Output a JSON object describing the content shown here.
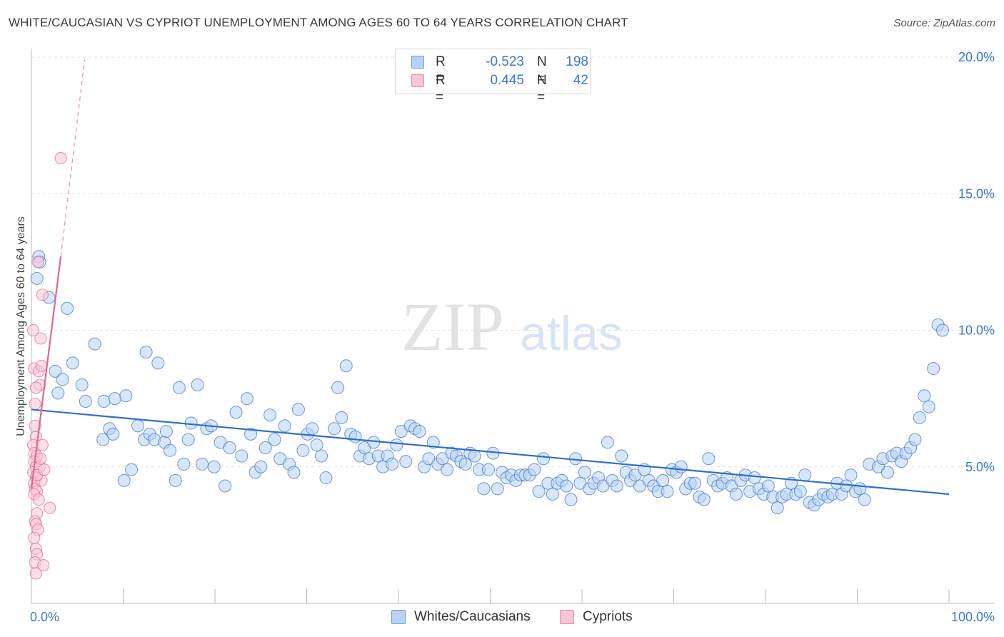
{
  "header": {
    "title": "WHITE/CAUCASIAN VS CYPRIOT UNEMPLOYMENT AMONG AGES 60 TO 64 YEARS CORRELATION CHART",
    "source": "Source: ZipAtlas.com"
  },
  "watermark": {
    "part1": "ZIP",
    "part2": "atlas"
  },
  "legend": {
    "rows": [
      {
        "r_label": "R =",
        "r_value": "-0.523",
        "n_label": "N =",
        "n_value": "198",
        "color": "#6b9fe0",
        "fill": "#b8d2f5"
      },
      {
        "r_label": "R =",
        "r_value": "0.445",
        "n_label": "N =",
        "n_value": "42",
        "color": "#e88aa8",
        "fill": "#f9c6d6"
      }
    ]
  },
  "bottom_legend": [
    {
      "label": "Whites/Caucasians",
      "color": "#6b9fe0",
      "fill": "#b8d2f5"
    },
    {
      "label": "Cypriots",
      "color": "#e88aa8",
      "fill": "#f9c6d6"
    }
  ],
  "chart_data": {
    "type": "scatter",
    "title": "WHITE/CAUCASIAN VS CYPRIOT UNEMPLOYMENT AMONG AGES 60 TO 64 YEARS CORRELATION CHART",
    "xlabel": "",
    "ylabel": "Unemployment Among Ages 60 to 64 years",
    "xlim": [
      0,
      100
    ],
    "ylim": [
      0,
      20
    ],
    "x_tick_labels": [
      "0.0%",
      "100.0%"
    ],
    "y_ticks": [
      5,
      10,
      15,
      20
    ],
    "y_tick_labels": [
      "5.0%",
      "10.0%",
      "15.0%",
      "20.0%"
    ],
    "grid": "horizontal dashed",
    "legend_placement": "top-center",
    "series": [
      {
        "name": "Whites/Caucasians",
        "color": "#3d78c8",
        "fill": "#b8d2f5",
        "trend": {
          "x": [
            0,
            100
          ],
          "y": [
            7.1,
            4.0
          ]
        },
        "points": [
          [
            0.8,
            12.7
          ],
          [
            0.9,
            12.5
          ],
          [
            0.6,
            11.9
          ],
          [
            1.9,
            11.2
          ],
          [
            3.9,
            10.8
          ],
          [
            2.6,
            8.5
          ],
          [
            4.5,
            8.8
          ],
          [
            3.4,
            8.2
          ],
          [
            2.9,
            7.7
          ],
          [
            5.5,
            8.0
          ],
          [
            5.9,
            7.4
          ],
          [
            6.9,
            9.5
          ],
          [
            7.8,
            6.0
          ],
          [
            7.9,
            7.4
          ],
          [
            8.5,
            6.4
          ],
          [
            8.9,
            6.2
          ],
          [
            9.1,
            7.5
          ],
          [
            10.3,
            7.6
          ],
          [
            10.1,
            4.5
          ],
          [
            10.9,
            4.9
          ],
          [
            11.6,
            6.5
          ],
          [
            12.3,
            6.0
          ],
          [
            12.5,
            9.2
          ],
          [
            12.9,
            6.2
          ],
          [
            13.4,
            6.0
          ],
          [
            13.8,
            8.8
          ],
          [
            14.5,
            5.9
          ],
          [
            14.7,
            6.3
          ],
          [
            15.1,
            5.6
          ],
          [
            15.7,
            4.5
          ],
          [
            16.1,
            7.9
          ],
          [
            16.6,
            5.1
          ],
          [
            17.1,
            6.0
          ],
          [
            17.4,
            6.6
          ],
          [
            18.1,
            8.0
          ],
          [
            18.6,
            5.1
          ],
          [
            19.1,
            6.4
          ],
          [
            19.6,
            6.5
          ],
          [
            19.9,
            5.0
          ],
          [
            20.6,
            5.9
          ],
          [
            21.1,
            4.3
          ],
          [
            21.6,
            5.7
          ],
          [
            22.3,
            7.0
          ],
          [
            22.9,
            5.4
          ],
          [
            23.5,
            7.5
          ],
          [
            23.9,
            6.2
          ],
          [
            24.4,
            4.8
          ],
          [
            25.0,
            5.0
          ],
          [
            25.5,
            5.7
          ],
          [
            26.0,
            6.9
          ],
          [
            26.5,
            6.0
          ],
          [
            27.1,
            5.3
          ],
          [
            27.6,
            6.5
          ],
          [
            28.1,
            5.1
          ],
          [
            28.6,
            4.8
          ],
          [
            29.1,
            7.1
          ],
          [
            29.6,
            5.6
          ],
          [
            30.1,
            6.2
          ],
          [
            30.6,
            6.4
          ],
          [
            31.1,
            5.8
          ],
          [
            31.6,
            5.4
          ],
          [
            32.1,
            4.6
          ],
          [
            33.0,
            6.4
          ],
          [
            33.4,
            7.9
          ],
          [
            33.8,
            6.8
          ],
          [
            34.3,
            8.7
          ],
          [
            34.8,
            6.2
          ],
          [
            35.3,
            6.1
          ],
          [
            35.8,
            5.4
          ],
          [
            36.3,
            5.7
          ],
          [
            36.8,
            5.3
          ],
          [
            37.3,
            5.9
          ],
          [
            37.8,
            5.4
          ],
          [
            38.3,
            5.0
          ],
          [
            38.8,
            5.4
          ],
          [
            39.3,
            5.1
          ],
          [
            39.8,
            5.8
          ],
          [
            40.3,
            6.3
          ],
          [
            40.8,
            5.2
          ],
          [
            41.3,
            6.5
          ],
          [
            41.8,
            6.4
          ],
          [
            42.3,
            6.3
          ],
          [
            42.8,
            5.0
          ],
          [
            43.3,
            5.3
          ],
          [
            43.8,
            5.9
          ],
          [
            44.3,
            5.1
          ],
          [
            44.8,
            5.3
          ],
          [
            45.3,
            4.9
          ],
          [
            45.8,
            5.5
          ],
          [
            46.3,
            5.4
          ],
          [
            46.8,
            5.2
          ],
          [
            47.3,
            5.1
          ],
          [
            47.8,
            5.5
          ],
          [
            48.3,
            5.4
          ],
          [
            48.8,
            4.9
          ],
          [
            49.3,
            4.2
          ],
          [
            49.8,
            4.9
          ],
          [
            50.3,
            5.5
          ],
          [
            50.8,
            4.2
          ],
          [
            51.3,
            4.8
          ],
          [
            51.8,
            4.6
          ],
          [
            52.3,
            4.7
          ],
          [
            52.8,
            4.5
          ],
          [
            53.3,
            4.7
          ],
          [
            53.8,
            4.7
          ],
          [
            54.3,
            4.7
          ],
          [
            54.8,
            4.9
          ],
          [
            55.3,
            4.1
          ],
          [
            55.8,
            5.3
          ],
          [
            56.3,
            4.4
          ],
          [
            56.8,
            4.0
          ],
          [
            57.3,
            4.4
          ],
          [
            57.8,
            4.5
          ],
          [
            58.3,
            4.3
          ],
          [
            58.8,
            3.8
          ],
          [
            59.3,
            5.3
          ],
          [
            59.8,
            4.4
          ],
          [
            60.3,
            4.8
          ],
          [
            60.8,
            4.2
          ],
          [
            61.3,
            4.4
          ],
          [
            61.8,
            4.6
          ],
          [
            62.3,
            4.3
          ],
          [
            62.8,
            5.9
          ],
          [
            63.3,
            4.5
          ],
          [
            63.8,
            4.3
          ],
          [
            64.3,
            5.4
          ],
          [
            64.8,
            4.8
          ],
          [
            65.3,
            4.5
          ],
          [
            65.8,
            4.7
          ],
          [
            66.3,
            4.3
          ],
          [
            66.8,
            4.9
          ],
          [
            67.3,
            4.5
          ],
          [
            67.8,
            4.3
          ],
          [
            68.3,
            4.1
          ],
          [
            68.8,
            4.5
          ],
          [
            69.3,
            4.1
          ],
          [
            69.8,
            4.9
          ],
          [
            70.3,
            4.8
          ],
          [
            70.8,
            5.0
          ],
          [
            71.3,
            4.2
          ],
          [
            71.8,
            4.4
          ],
          [
            72.3,
            4.4
          ],
          [
            72.8,
            3.9
          ],
          [
            73.3,
            3.8
          ],
          [
            73.8,
            5.3
          ],
          [
            74.3,
            4.5
          ],
          [
            74.8,
            4.3
          ],
          [
            75.3,
            4.4
          ],
          [
            75.8,
            4.6
          ],
          [
            76.3,
            4.3
          ],
          [
            76.8,
            4.0
          ],
          [
            77.3,
            4.5
          ],
          [
            77.8,
            4.7
          ],
          [
            78.3,
            4.1
          ],
          [
            78.8,
            4.6
          ],
          [
            79.3,
            4.2
          ],
          [
            79.8,
            4.0
          ],
          [
            80.3,
            4.3
          ],
          [
            80.8,
            3.9
          ],
          [
            81.3,
            3.5
          ],
          [
            81.8,
            3.9
          ],
          [
            82.3,
            4.0
          ],
          [
            82.8,
            4.4
          ],
          [
            83.3,
            4.0
          ],
          [
            83.8,
            4.1
          ],
          [
            84.3,
            4.7
          ],
          [
            84.8,
            3.7
          ],
          [
            85.3,
            3.6
          ],
          [
            85.8,
            3.8
          ],
          [
            86.3,
            4.0
          ],
          [
            86.8,
            3.9
          ],
          [
            87.3,
            4.0
          ],
          [
            87.8,
            4.4
          ],
          [
            88.3,
            4.0
          ],
          [
            88.8,
            4.3
          ],
          [
            89.3,
            4.7
          ],
          [
            89.8,
            4.1
          ],
          [
            90.3,
            4.2
          ],
          [
            90.8,
            3.8
          ],
          [
            91.3,
            5.1
          ],
          [
            92.3,
            5.0
          ],
          [
            92.8,
            5.3
          ],
          [
            93.3,
            4.8
          ],
          [
            93.8,
            5.4
          ],
          [
            94.3,
            5.5
          ],
          [
            94.8,
            5.2
          ],
          [
            95.3,
            5.5
          ],
          [
            95.8,
            5.7
          ],
          [
            96.3,
            6.0
          ],
          [
            96.8,
            6.8
          ],
          [
            97.3,
            7.6
          ],
          [
            97.8,
            7.2
          ],
          [
            98.3,
            8.6
          ],
          [
            98.8,
            10.2
          ],
          [
            99.3,
            10.0
          ]
        ]
      },
      {
        "name": "Cypriots",
        "color": "#e06890",
        "fill": "#f9c6d6",
        "trend": {
          "x": [
            0,
            3.2
          ],
          "y": [
            4.2,
            12.7
          ]
        },
        "trend_extension": {
          "x": [
            3.2,
            5.8
          ],
          "y": [
            12.7,
            19.9
          ]
        },
        "points": [
          [
            0.2,
            10.0
          ],
          [
            0.3,
            8.6
          ],
          [
            0.4,
            7.3
          ],
          [
            0.5,
            6.1
          ],
          [
            0.2,
            5.8
          ],
          [
            0.3,
            5.5
          ],
          [
            0.6,
            5.4
          ],
          [
            0.3,
            5.2
          ],
          [
            0.5,
            5.0
          ],
          [
            0.2,
            4.8
          ],
          [
            0.5,
            4.6
          ],
          [
            0.3,
            4.4
          ],
          [
            0.4,
            4.2
          ],
          [
            0.6,
            4.1
          ],
          [
            0.3,
            4.0
          ],
          [
            0.6,
            3.3
          ],
          [
            0.4,
            3.0
          ],
          [
            0.5,
            2.9
          ],
          [
            0.7,
            2.7
          ],
          [
            0.5,
            2.0
          ],
          [
            0.6,
            1.8
          ],
          [
            0.4,
            1.5
          ],
          [
            0.5,
            1.1
          ],
          [
            0.9,
            5.0
          ],
          [
            1.0,
            5.3
          ],
          [
            1.1,
            4.5
          ],
          [
            0.8,
            8.5
          ],
          [
            1.1,
            8.7
          ],
          [
            1.0,
            9.7
          ],
          [
            1.2,
            11.3
          ],
          [
            0.7,
            12.5
          ],
          [
            3.2,
            16.3
          ],
          [
            2.0,
            3.5
          ],
          [
            1.3,
            1.4
          ],
          [
            0.4,
            6.5
          ],
          [
            0.9,
            8.0
          ],
          [
            1.2,
            5.8
          ],
          [
            0.8,
            3.8
          ],
          [
            0.3,
            2.4
          ],
          [
            0.6,
            4.7
          ],
          [
            1.4,
            4.9
          ],
          [
            0.5,
            7.9
          ]
        ]
      }
    ]
  }
}
